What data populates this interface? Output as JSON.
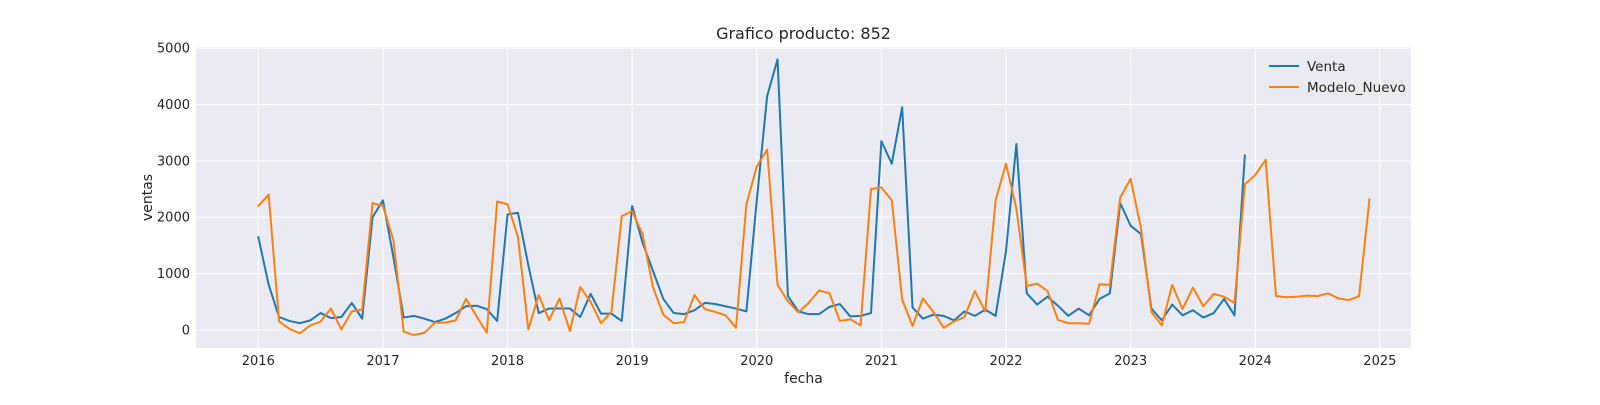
{
  "chart_data": {
    "type": "line",
    "title": "Grafico producto: 852",
    "xlabel": "fecha",
    "ylabel": "ventas",
    "xlim": [
      "2015-07-01",
      "2025-04-01"
    ],
    "ylim": [
      -320,
      5020
    ],
    "xticks": [
      "2016",
      "2017",
      "2018",
      "2019",
      "2020",
      "2021",
      "2022",
      "2023",
      "2024",
      "2025"
    ],
    "yticks": [
      0,
      1000,
      2000,
      3000,
      4000,
      5000
    ],
    "grid": true,
    "legend": "top-right",
    "x": [
      "2016-01",
      "2016-02",
      "2016-03",
      "2016-04",
      "2016-05",
      "2016-06",
      "2016-07",
      "2016-08",
      "2016-09",
      "2016-10",
      "2016-11",
      "2016-12",
      "2017-01",
      "2017-02",
      "2017-03",
      "2017-04",
      "2017-05",
      "2017-06",
      "2017-07",
      "2017-08",
      "2017-09",
      "2017-10",
      "2017-11",
      "2017-12",
      "2018-01",
      "2018-02",
      "2018-03",
      "2018-04",
      "2018-05",
      "2018-06",
      "2018-07",
      "2018-08",
      "2018-09",
      "2018-10",
      "2018-11",
      "2018-12",
      "2019-01",
      "2019-02",
      "2019-03",
      "2019-04",
      "2019-05",
      "2019-06",
      "2019-07",
      "2019-08",
      "2019-09",
      "2019-10",
      "2019-11",
      "2019-12",
      "2020-01",
      "2020-02",
      "2020-03",
      "2020-04",
      "2020-05",
      "2020-06",
      "2020-07",
      "2020-08",
      "2020-09",
      "2020-10",
      "2020-11",
      "2020-12",
      "2021-01",
      "2021-02",
      "2021-03",
      "2021-04",
      "2021-05",
      "2021-06",
      "2021-07",
      "2021-08",
      "2021-09",
      "2021-10",
      "2021-11",
      "2021-12",
      "2022-01",
      "2022-02",
      "2022-03",
      "2022-04",
      "2022-05",
      "2022-06",
      "2022-07",
      "2022-08",
      "2022-09",
      "2022-10",
      "2022-11",
      "2022-12",
      "2023-01",
      "2023-02",
      "2023-03",
      "2023-04",
      "2023-05",
      "2023-06",
      "2023-07",
      "2023-08",
      "2023-09",
      "2023-10",
      "2023-11",
      "2023-12",
      "2024-01",
      "2024-02",
      "2024-03",
      "2024-04",
      "2024-05",
      "2024-06",
      "2024-07",
      "2024-08",
      "2024-09",
      "2024-10",
      "2024-11",
      "2024-12"
    ],
    "series": [
      {
        "name": "Venta",
        "color": "#1f77b4",
        "values": [
          1650,
          800,
          230,
          160,
          120,
          170,
          300,
          210,
          230,
          480,
          200,
          2000,
          2300,
          1300,
          220,
          250,
          200,
          140,
          200,
          300,
          420,
          430,
          370,
          160,
          2050,
          2080,
          1150,
          300,
          380,
          380,
          380,
          230,
          640,
          290,
          290,
          160,
          2200,
          1550,
          1050,
          550,
          300,
          280,
          350,
          480,
          460,
          420,
          380,
          330,
          2300,
          4150,
          4800,
          600,
          330,
          280,
          280,
          410,
          460,
          240,
          250,
          300,
          3350,
          2950,
          3950,
          400,
          200,
          270,
          250,
          170,
          330,
          250,
          360,
          250,
          1400,
          3300,
          650,
          450,
          590,
          430,
          250,
          380,
          260,
          550,
          650,
          2250,
          1850,
          1700,
          380,
          170,
          450,
          260,
          350,
          220,
          300,
          550,
          260,
          3100,
          null,
          null,
          null,
          null,
          null,
          null,
          null,
          null,
          null,
          null,
          null,
          null
        ]
      },
      {
        "name": "Modelo_Nuevo",
        "color": "#ff7f0e",
        "values": [
          2200,
          2400,
          150,
          20,
          -60,
          80,
          150,
          380,
          10,
          330,
          360,
          2250,
          2200,
          1600,
          -30,
          -90,
          -50,
          130,
          130,
          170,
          550,
          250,
          -50,
          2280,
          2230,
          1650,
          10,
          620,
          170,
          560,
          -20,
          760,
          500,
          120,
          320,
          2020,
          2110,
          1700,
          760,
          270,
          120,
          140,
          620,
          370,
          320,
          260,
          40,
          2230,
          2900,
          3200,
          800,
          510,
          310,
          480,
          700,
          650,
          160,
          190,
          80,
          2500,
          2530,
          2300,
          540,
          70,
          560,
          320,
          40,
          150,
          230,
          690,
          330,
          2300,
          2950,
          2150,
          780,
          820,
          690,
          180,
          120,
          120,
          110,
          810,
          800,
          2350,
          2680,
          1800,
          320,
          80,
          800,
          370,
          750,
          420,
          640,
          590,
          480,
          2580,
          2750,
          3020,
          600,
          580,
          590,
          610,
          600,
          650,
          560,
          530,
          600,
          2320
        ]
      }
    ]
  }
}
